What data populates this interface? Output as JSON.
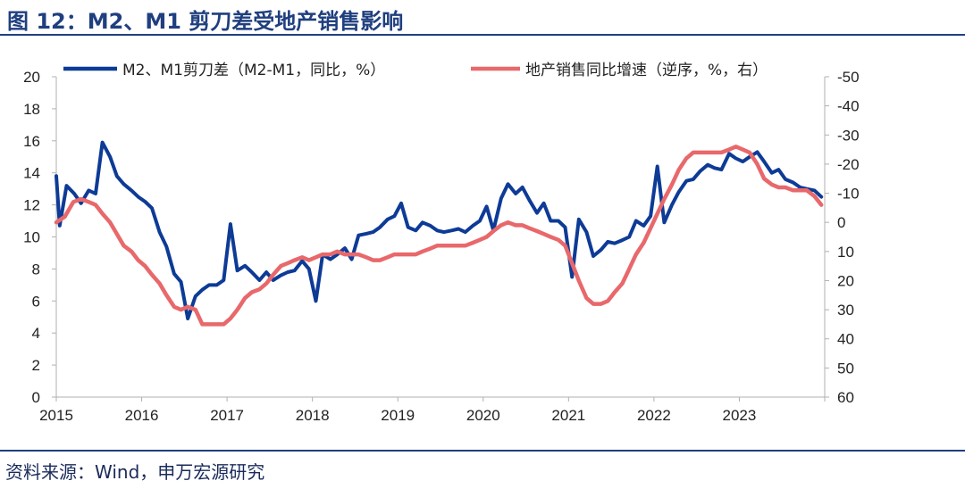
{
  "title": "图 12：M2、M1 剪刀差受地产销售影响",
  "source": "资料来源：Wind，申万宏源研究",
  "chart_data": {
    "type": "line",
    "x_ticks": [
      "2015",
      "2016",
      "2017",
      "2018",
      "2019",
      "2020",
      "2021",
      "2022",
      "2023"
    ],
    "x_range": [
      2015.0,
      2024.0
    ],
    "y_left": {
      "ticks": [
        "0",
        "2",
        "4",
        "6",
        "8",
        "10",
        "12",
        "14",
        "16",
        "18",
        "20"
      ],
      "range": [
        0,
        20
      ]
    },
    "y_right": {
      "ticks": [
        "60",
        "50",
        "40",
        "30",
        "20",
        "10",
        "0",
        "-10",
        "-20",
        "-30",
        "-40",
        "-50"
      ],
      "range": [
        60,
        -50
      ],
      "reversed": true
    },
    "series": [
      {
        "name": "M2、M1剪刀差（M2-M1，同比，%）",
        "axis": "left",
        "color": "#0d3b96",
        "points": [
          [
            2015.0,
            13.8
          ],
          [
            2015.04,
            10.7
          ],
          [
            2015.12,
            13.2
          ],
          [
            2015.21,
            12.7
          ],
          [
            2015.29,
            12.1
          ],
          [
            2015.38,
            12.9
          ],
          [
            2015.46,
            12.7
          ],
          [
            2015.54,
            15.9
          ],
          [
            2015.63,
            15.0
          ],
          [
            2015.71,
            13.8
          ],
          [
            2015.79,
            13.3
          ],
          [
            2015.88,
            12.9
          ],
          [
            2015.96,
            12.5
          ],
          [
            2016.04,
            12.2
          ],
          [
            2016.12,
            11.8
          ],
          [
            2016.21,
            10.3
          ],
          [
            2016.29,
            9.4
          ],
          [
            2016.38,
            7.7
          ],
          [
            2016.46,
            7.2
          ],
          [
            2016.54,
            4.9
          ],
          [
            2016.63,
            6.3
          ],
          [
            2016.71,
            6.7
          ],
          [
            2016.79,
            7.0
          ],
          [
            2016.88,
            7.0
          ],
          [
            2016.96,
            7.3
          ],
          [
            2017.04,
            10.8
          ],
          [
            2017.12,
            7.9
          ],
          [
            2017.21,
            8.2
          ],
          [
            2017.29,
            7.8
          ],
          [
            2017.38,
            7.3
          ],
          [
            2017.46,
            7.8
          ],
          [
            2017.54,
            7.3
          ],
          [
            2017.63,
            7.6
          ],
          [
            2017.71,
            7.8
          ],
          [
            2017.79,
            7.9
          ],
          [
            2017.88,
            8.5
          ],
          [
            2017.96,
            8.0
          ],
          [
            2018.04,
            6.0
          ],
          [
            2018.12,
            8.9
          ],
          [
            2018.21,
            8.6
          ],
          [
            2018.29,
            8.9
          ],
          [
            2018.38,
            9.3
          ],
          [
            2018.46,
            8.6
          ],
          [
            2018.54,
            10.1
          ],
          [
            2018.63,
            10.2
          ],
          [
            2018.71,
            10.3
          ],
          [
            2018.79,
            10.6
          ],
          [
            2018.88,
            11.1
          ],
          [
            2018.96,
            11.3
          ],
          [
            2019.04,
            12.1
          ],
          [
            2019.12,
            10.6
          ],
          [
            2019.21,
            10.4
          ],
          [
            2019.29,
            10.9
          ],
          [
            2019.38,
            10.7
          ],
          [
            2019.46,
            10.4
          ],
          [
            2019.54,
            10.3
          ],
          [
            2019.63,
            10.4
          ],
          [
            2019.71,
            10.5
          ],
          [
            2019.79,
            10.3
          ],
          [
            2019.88,
            10.7
          ],
          [
            2019.96,
            11.0
          ],
          [
            2020.04,
            11.9
          ],
          [
            2020.12,
            10.4
          ],
          [
            2020.21,
            12.4
          ],
          [
            2020.29,
            13.3
          ],
          [
            2020.38,
            12.7
          ],
          [
            2020.46,
            13.1
          ],
          [
            2020.54,
            12.3
          ],
          [
            2020.63,
            11.5
          ],
          [
            2020.71,
            12.1
          ],
          [
            2020.79,
            11.0
          ],
          [
            2020.88,
            11.0
          ],
          [
            2020.96,
            10.6
          ],
          [
            2021.04,
            7.5
          ],
          [
            2021.12,
            11.1
          ],
          [
            2021.21,
            10.3
          ],
          [
            2021.29,
            8.8
          ],
          [
            2021.38,
            9.2
          ],
          [
            2021.46,
            9.7
          ],
          [
            2021.54,
            9.6
          ],
          [
            2021.63,
            9.8
          ],
          [
            2021.71,
            10.0
          ],
          [
            2021.79,
            11.0
          ],
          [
            2021.88,
            10.7
          ],
          [
            2021.96,
            11.3
          ],
          [
            2022.04,
            14.4
          ],
          [
            2022.12,
            10.9
          ],
          [
            2022.21,
            12.0
          ],
          [
            2022.29,
            12.8
          ],
          [
            2022.38,
            13.5
          ],
          [
            2022.46,
            13.6
          ],
          [
            2022.54,
            14.1
          ],
          [
            2022.63,
            14.5
          ],
          [
            2022.71,
            14.3
          ],
          [
            2022.79,
            14.2
          ],
          [
            2022.88,
            15.2
          ],
          [
            2022.96,
            14.9
          ],
          [
            2023.04,
            14.7
          ],
          [
            2023.12,
            15.0
          ],
          [
            2023.21,
            15.3
          ],
          [
            2023.29,
            14.7
          ],
          [
            2023.38,
            14.0
          ],
          [
            2023.46,
            14.2
          ],
          [
            2023.54,
            13.6
          ],
          [
            2023.63,
            13.4
          ],
          [
            2023.71,
            13.1
          ],
          [
            2023.79,
            13.0
          ],
          [
            2023.88,
            12.9
          ],
          [
            2023.96,
            12.5
          ]
        ]
      },
      {
        "name": "地产销售同比增速（逆序，%，右）",
        "axis": "right",
        "color": "#e8686b",
        "points": [
          [
            2015.0,
            0
          ],
          [
            2015.1,
            -2
          ],
          [
            2015.2,
            -7
          ],
          [
            2015.29,
            -8
          ],
          [
            2015.38,
            -7
          ],
          [
            2015.46,
            -6
          ],
          [
            2015.54,
            -3
          ],
          [
            2015.63,
            0
          ],
          [
            2015.71,
            4
          ],
          [
            2015.79,
            8
          ],
          [
            2015.88,
            10
          ],
          [
            2015.96,
            13
          ],
          [
            2016.04,
            15
          ],
          [
            2016.12,
            18
          ],
          [
            2016.21,
            21
          ],
          [
            2016.29,
            25
          ],
          [
            2016.38,
            29
          ],
          [
            2016.46,
            30
          ],
          [
            2016.54,
            29
          ],
          [
            2016.63,
            30
          ],
          [
            2016.71,
            35
          ],
          [
            2016.79,
            35
          ],
          [
            2016.88,
            35
          ],
          [
            2016.96,
            35
          ],
          [
            2017.04,
            33
          ],
          [
            2017.12,
            30
          ],
          [
            2017.21,
            26
          ],
          [
            2017.29,
            24
          ],
          [
            2017.38,
            23
          ],
          [
            2017.46,
            21
          ],
          [
            2017.54,
            18
          ],
          [
            2017.63,
            15
          ],
          [
            2017.71,
            14
          ],
          [
            2017.79,
            13
          ],
          [
            2017.88,
            12
          ],
          [
            2017.96,
            13
          ],
          [
            2018.04,
            12
          ],
          [
            2018.12,
            11
          ],
          [
            2018.21,
            11
          ],
          [
            2018.29,
            10
          ],
          [
            2018.38,
            11
          ],
          [
            2018.46,
            11
          ],
          [
            2018.54,
            11
          ],
          [
            2018.63,
            12
          ],
          [
            2018.71,
            13
          ],
          [
            2018.79,
            13
          ],
          [
            2018.88,
            12
          ],
          [
            2018.96,
            11
          ],
          [
            2019.04,
            11
          ],
          [
            2019.12,
            11
          ],
          [
            2019.21,
            11
          ],
          [
            2019.29,
            10
          ],
          [
            2019.38,
            9
          ],
          [
            2019.46,
            8
          ],
          [
            2019.54,
            8
          ],
          [
            2019.63,
            8
          ],
          [
            2019.71,
            8
          ],
          [
            2019.79,
            8
          ],
          [
            2019.88,
            7
          ],
          [
            2019.96,
            6
          ],
          [
            2020.04,
            5
          ],
          [
            2020.12,
            3
          ],
          [
            2020.21,
            1
          ],
          [
            2020.29,
            0
          ],
          [
            2020.38,
            1
          ],
          [
            2020.46,
            1
          ],
          [
            2020.54,
            2
          ],
          [
            2020.63,
            3
          ],
          [
            2020.71,
            4
          ],
          [
            2020.79,
            5
          ],
          [
            2020.88,
            6
          ],
          [
            2020.96,
            8
          ],
          [
            2021.04,
            14
          ],
          [
            2021.12,
            20
          ],
          [
            2021.21,
            26
          ],
          [
            2021.29,
            28
          ],
          [
            2021.38,
            28
          ],
          [
            2021.46,
            27
          ],
          [
            2021.54,
            24
          ],
          [
            2021.63,
            21
          ],
          [
            2021.71,
            16
          ],
          [
            2021.79,
            11
          ],
          [
            2021.88,
            7
          ],
          [
            2021.96,
            2
          ],
          [
            2022.04,
            -3
          ],
          [
            2022.12,
            -8
          ],
          [
            2022.21,
            -13
          ],
          [
            2022.29,
            -18
          ],
          [
            2022.38,
            -22
          ],
          [
            2022.46,
            -24
          ],
          [
            2022.54,
            -24
          ],
          [
            2022.63,
            -24
          ],
          [
            2022.71,
            -24
          ],
          [
            2022.79,
            -24
          ],
          [
            2022.88,
            -25
          ],
          [
            2022.96,
            -26
          ],
          [
            2023.04,
            -25
          ],
          [
            2023.12,
            -24
          ],
          [
            2023.21,
            -20
          ],
          [
            2023.29,
            -15
          ],
          [
            2023.38,
            -13
          ],
          [
            2023.46,
            -12
          ],
          [
            2023.54,
            -12
          ],
          [
            2023.63,
            -11
          ],
          [
            2023.71,
            -11
          ],
          [
            2023.79,
            -11
          ],
          [
            2023.88,
            -9
          ],
          [
            2023.96,
            -6
          ]
        ]
      }
    ],
    "grid": false,
    "legend_placement": "top"
  }
}
